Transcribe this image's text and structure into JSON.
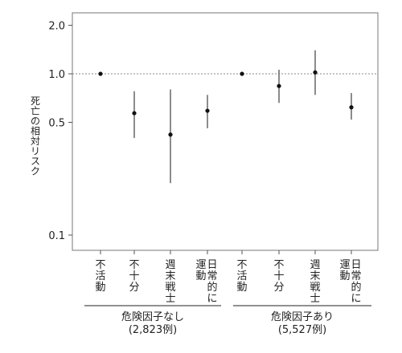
{
  "chart_data": {
    "type": "scatter",
    "ylabel": "死亡の相対リスク",
    "y_scale": "log",
    "yticks": [
      {
        "value": 0.1,
        "label": "0.1"
      },
      {
        "value": 0.5,
        "label": "0.5"
      },
      {
        "value": 1.0,
        "label": "1.0"
      },
      {
        "value": 2.0,
        "label": "2.0"
      }
    ],
    "reference_line": 1.0,
    "groups": [
      {
        "label_line1": "危険因子なし",
        "label_line2": "(2,823例)",
        "categories": [
          {
            "label": "不活動",
            "estimate": 1.0,
            "lower": 1.0,
            "upper": 1.0
          },
          {
            "label": "不十分",
            "estimate": 0.57,
            "lower": 0.4,
            "upper": 0.78
          },
          {
            "label": "週末戦士",
            "estimate": 0.42,
            "lower": 0.21,
            "upper": 0.8
          },
          {
            "label": "日常的に運動",
            "label_col1": "日常的に",
            "label_col2": "運動",
            "estimate": 0.59,
            "lower": 0.46,
            "upper": 0.74
          }
        ]
      },
      {
        "label_line1": "危険因子あり",
        "label_line2": "(5,527例)",
        "categories": [
          {
            "label": "不活動",
            "estimate": 1.0,
            "lower": 1.0,
            "upper": 1.0
          },
          {
            "label": "不十分",
            "estimate": 0.84,
            "lower": 0.66,
            "upper": 1.06
          },
          {
            "label": "週末戦士",
            "estimate": 1.02,
            "lower": 0.74,
            "upper": 1.4
          },
          {
            "label": "日常的に運動",
            "label_col1": "日常的に",
            "label_col2": "運動",
            "estimate": 0.62,
            "lower": 0.52,
            "upper": 0.76
          }
        ]
      }
    ]
  }
}
